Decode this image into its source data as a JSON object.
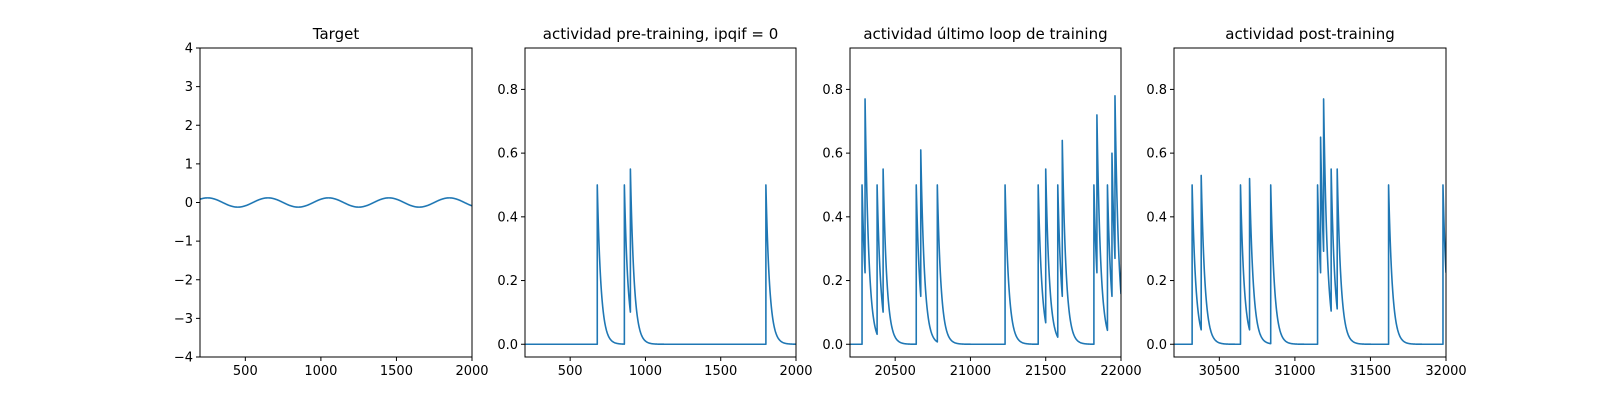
{
  "chart_data": [
    {
      "type": "line",
      "title": "Target",
      "xlabel": "",
      "ylabel": "",
      "xlim": [
        200,
        2000
      ],
      "ylim": [
        -4,
        4
      ],
      "xticks": [
        500,
        1000,
        1500,
        2000
      ],
      "xtick_labels": [
        "500",
        "1000",
        "1500",
        "2000"
      ],
      "yticks": [
        -4,
        -3,
        -2,
        -1,
        0,
        1,
        2,
        3,
        4
      ],
      "ytick_labels": [
        "−4",
        "−3",
        "−2",
        "−1",
        "0",
        "1",
        "2",
        "3",
        "4"
      ],
      "series": [
        {
          "name": "target",
          "color": "#1f77b4",
          "kind": "sine",
          "amplitude": 0.12,
          "period": 400,
          "phase_x": 150
        }
      ]
    },
    {
      "type": "line",
      "title": "actividad pre-training, ipqif = 0",
      "xlabel": "",
      "ylabel": "",
      "xlim": [
        200,
        2000
      ],
      "ylim": [
        -0.04,
        0.93
      ],
      "xticks": [
        500,
        1000,
        1500,
        2000
      ],
      "xtick_labels": [
        "500",
        "1000",
        "1500",
        "2000"
      ],
      "yticks": [
        0.0,
        0.2,
        0.4,
        0.6,
        0.8
      ],
      "ytick_labels": [
        "0.0",
        "0.2",
        "0.4",
        "0.6",
        "0.8"
      ],
      "series": [
        {
          "name": "actividad",
          "color": "#1f77b4",
          "kind": "spikes",
          "decay": 25,
          "spikes": [
            [
              680,
              0.5
            ],
            [
              860,
              0.5
            ],
            [
              900,
              0.55
            ],
            [
              1800,
              0.5
            ]
          ]
        }
      ]
    },
    {
      "type": "line",
      "title": "actividad último loop de training",
      "xlabel": "",
      "ylabel": "",
      "xlim": [
        20200,
        22000
      ],
      "ylim": [
        -0.04,
        0.93
      ],
      "xticks": [
        20500,
        21000,
        21500,
        22000
      ],
      "xtick_labels": [
        "20500",
        "21000",
        "21500",
        "22000"
      ],
      "yticks": [
        0.0,
        0.2,
        0.4,
        0.6,
        0.8
      ],
      "ytick_labels": [
        "0.0",
        "0.2",
        "0.4",
        "0.6",
        "0.8"
      ],
      "series": [
        {
          "name": "actividad",
          "color": "#1f77b4",
          "kind": "spikes",
          "decay": 25,
          "spikes": [
            [
              20280,
              0.5
            ],
            [
              20300,
              0.77
            ],
            [
              20380,
              0.5
            ],
            [
              20420,
              0.55
            ],
            [
              20640,
              0.5
            ],
            [
              20670,
              0.61
            ],
            [
              20780,
              0.5
            ],
            [
              21230,
              0.5
            ],
            [
              21450,
              0.5
            ],
            [
              21500,
              0.55
            ],
            [
              21580,
              0.5
            ],
            [
              21610,
              0.64
            ],
            [
              21820,
              0.5
            ],
            [
              21840,
              0.72
            ],
            [
              21910,
              0.5
            ],
            [
              21940,
              0.6
            ],
            [
              21960,
              0.78
            ]
          ]
        }
      ]
    },
    {
      "type": "line",
      "title": "actividad post-training",
      "xlabel": "",
      "ylabel": "",
      "xlim": [
        30200,
        32000
      ],
      "ylim": [
        -0.04,
        0.93
      ],
      "xticks": [
        30500,
        31000,
        31500,
        32000
      ],
      "xtick_labels": [
        "30500",
        "31000",
        "31500",
        "32000"
      ],
      "yticks": [
        0.0,
        0.2,
        0.4,
        0.6,
        0.8
      ],
      "ytick_labels": [
        "0.0",
        "0.2",
        "0.4",
        "0.6",
        "0.8"
      ],
      "series": [
        {
          "name": "actividad",
          "color": "#1f77b4",
          "kind": "spikes",
          "decay": 25,
          "spikes": [
            [
              30320,
              0.5
            ],
            [
              30380,
              0.53
            ],
            [
              30640,
              0.5
            ],
            [
              30700,
              0.52
            ],
            [
              30840,
              0.5
            ],
            [
              31150,
              0.5
            ],
            [
              31170,
              0.65
            ],
            [
              31190,
              0.77
            ],
            [
              31240,
              0.55
            ],
            [
              31280,
              0.55
            ],
            [
              31620,
              0.5
            ],
            [
              31980,
              0.5
            ]
          ]
        }
      ]
    }
  ]
}
